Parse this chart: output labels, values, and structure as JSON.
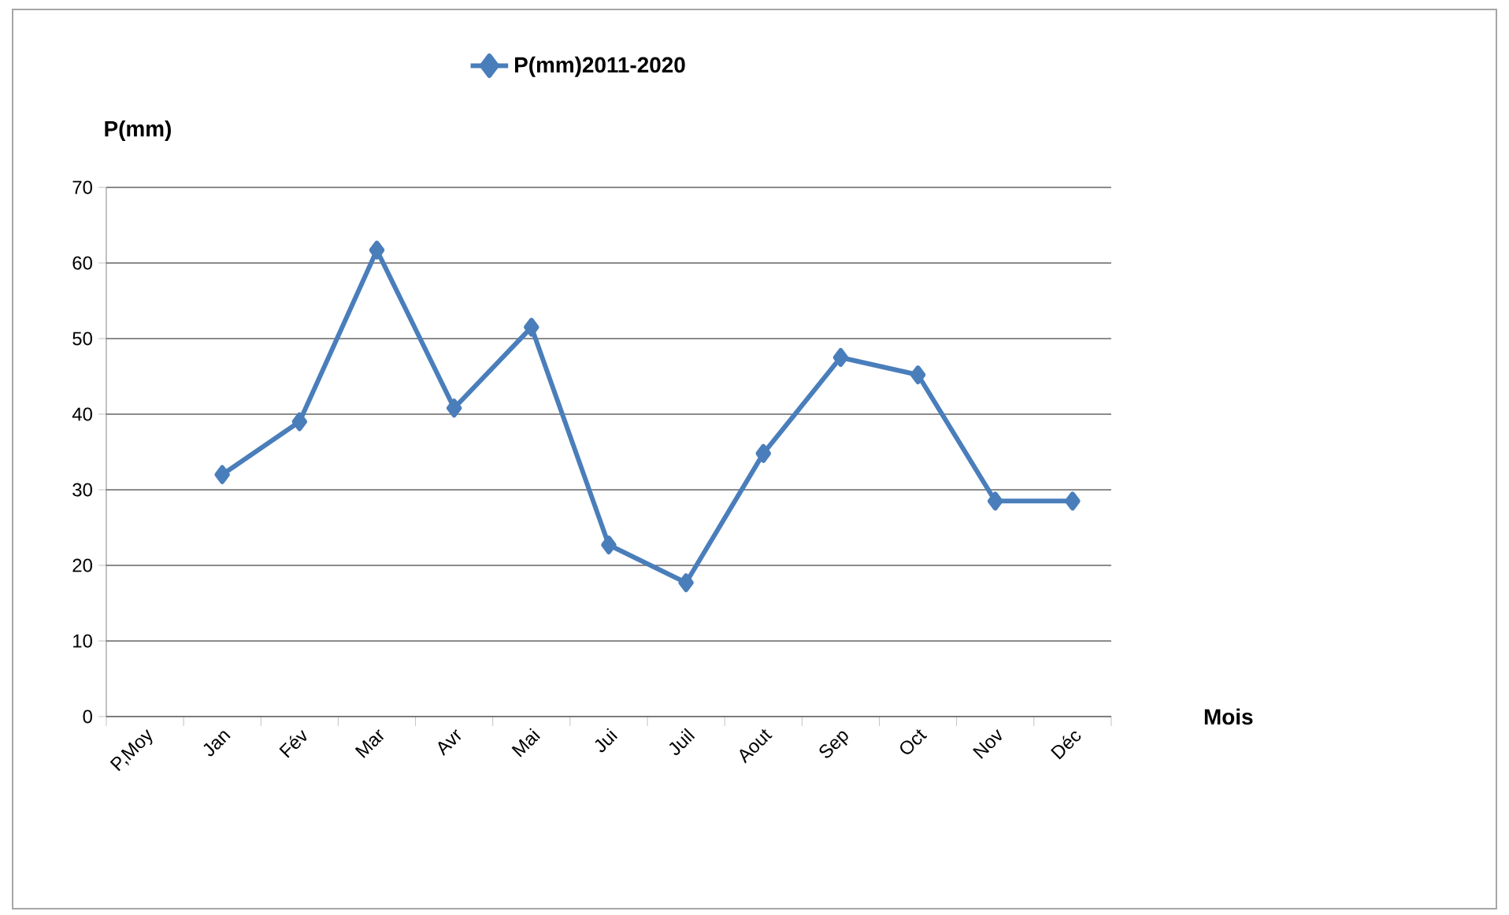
{
  "chart_data": {
    "type": "line",
    "categories": [
      "P,Moy",
      "Jan",
      "Fév",
      "Mar",
      "Avr",
      "Mai",
      "Jui",
      "Juil",
      "Aout",
      "Sep",
      "Oct",
      "Nov",
      "Déc"
    ],
    "series": [
      {
        "name": "P(mm)2011-2020",
        "color": "#4a7ebb",
        "values": [
          null,
          32,
          39,
          61.7,
          40.8,
          51.5,
          22.7,
          17.7,
          34.8,
          47.5,
          45.2,
          28.5,
          28.5
        ]
      }
    ],
    "xlabel": "Mois",
    "ylabel": "P(mm)",
    "ylim": [
      0,
      70
    ],
    "yticks": [
      0,
      10,
      20,
      30,
      40,
      50,
      60,
      70
    ],
    "grid": "y",
    "legend": "top",
    "marker": "diamond",
    "line_style": "solid"
  }
}
